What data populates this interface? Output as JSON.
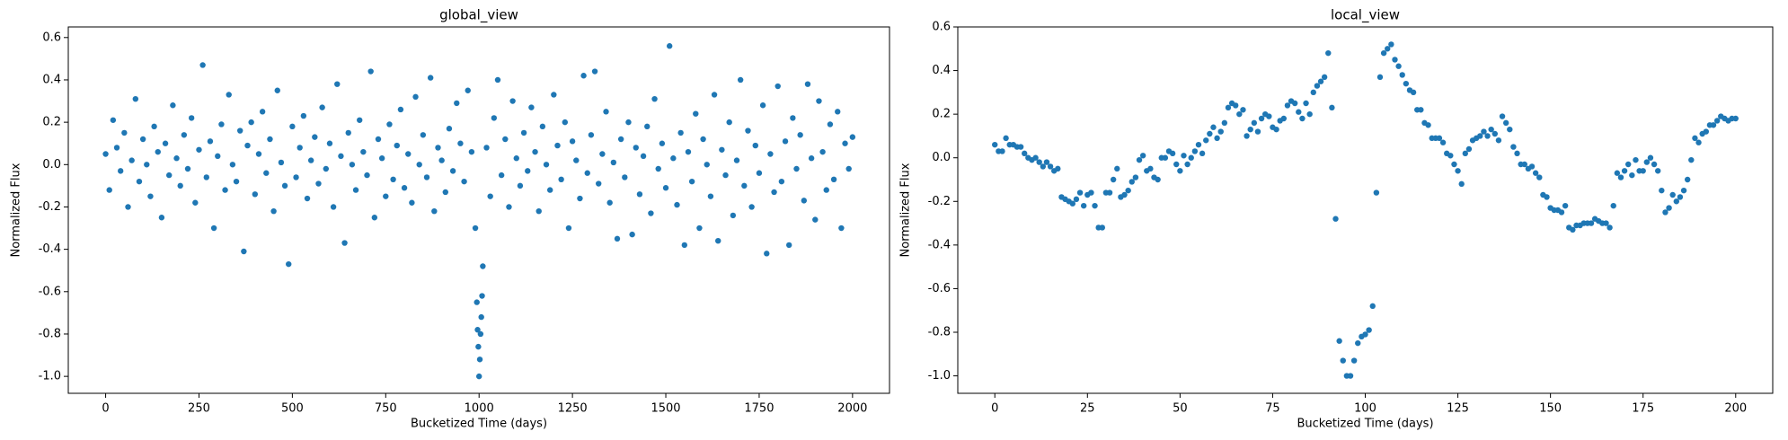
{
  "chart_data": [
    {
      "type": "scatter",
      "title": "global_view",
      "xlabel": "Bucketized Time (days)",
      "ylabel": "Normalized Flux",
      "color": "#1f77b4",
      "xlim": [
        -100,
        2099
      ],
      "ylim": [
        -1.08,
        0.65
      ],
      "xticks": [
        0,
        250,
        500,
        750,
        1000,
        1250,
        1500,
        1750,
        2000
      ],
      "yticks": [
        {
          "value": -1,
          "label": "-1.0"
        },
        -0.8,
        -0.6,
        -0.4,
        -0.2,
        {
          "value": 0,
          "label": "0.0"
        },
        0.2,
        0.4,
        0.6
      ],
      "x": [
        0,
        10,
        20,
        30,
        40,
        50,
        60,
        70,
        80,
        90,
        100,
        110,
        120,
        130,
        140,
        150,
        160,
        170,
        180,
        190,
        200,
        210,
        220,
        230,
        240,
        250,
        260,
        270,
        280,
        290,
        300,
        310,
        320,
        330,
        340,
        350,
        360,
        370,
        380,
        390,
        400,
        410,
        420,
        430,
        440,
        450,
        460,
        470,
        480,
        490,
        500,
        510,
        520,
        530,
        540,
        550,
        560,
        570,
        580,
        590,
        600,
        610,
        620,
        630,
        640,
        650,
        660,
        670,
        680,
        690,
        700,
        710,
        720,
        730,
        740,
        750,
        760,
        770,
        780,
        790,
        800,
        810,
        820,
        830,
        840,
        850,
        860,
        870,
        880,
        890,
        900,
        910,
        920,
        930,
        940,
        950,
        960,
        970,
        980,
        990,
        994,
        996,
        998,
        1000,
        1002,
        1004,
        1006,
        1008,
        1010,
        1020,
        1030,
        1040,
        1050,
        1060,
        1070,
        1080,
        1090,
        1100,
        1110,
        1120,
        1130,
        1140,
        1150,
        1160,
        1170,
        1180,
        1190,
        1200,
        1210,
        1220,
        1230,
        1240,
        1250,
        1260,
        1270,
        1280,
        1290,
        1300,
        1310,
        1320,
        1330,
        1340,
        1350,
        1360,
        1370,
        1380,
        1390,
        1400,
        1410,
        1420,
        1430,
        1440,
        1450,
        1460,
        1470,
        1480,
        1490,
        1500,
        1510,
        1520,
        1530,
        1540,
        1550,
        1560,
        1570,
        1580,
        1590,
        1600,
        1610,
        1620,
        1630,
        1640,
        1650,
        1660,
        1670,
        1680,
        1690,
        1700,
        1710,
        1720,
        1730,
        1740,
        1750,
        1760,
        1770,
        1780,
        1790,
        1800,
        1810,
        1820,
        1830,
        1840,
        1850,
        1860,
        1870,
        1880,
        1890,
        1900,
        1910,
        1920,
        1930,
        1940,
        1950,
        1960,
        1970,
        1980,
        1990,
        2000
      ],
      "values": [
        0.05,
        -0.12,
        0.21,
        0.08,
        -0.03,
        0.15,
        -0.2,
        0.02,
        0.31,
        -0.08,
        0.12,
        0.0,
        -0.15,
        0.18,
        0.06,
        -0.25,
        0.1,
        -0.05,
        0.28,
        0.03,
        -0.1,
        0.14,
        -0.02,
        0.22,
        -0.18,
        0.07,
        0.47,
        -0.06,
        0.11,
        -0.3,
        0.04,
        0.19,
        -0.12,
        0.33,
        0.0,
        -0.08,
        0.16,
        -0.41,
        0.09,
        0.2,
        -0.14,
        0.05,
        0.25,
        -0.04,
        0.12,
        -0.22,
        0.35,
        0.01,
        -0.1,
        -0.47,
        0.18,
        -0.06,
        0.08,
        0.23,
        -0.16,
        0.02,
        0.13,
        -0.09,
        0.27,
        -0.02,
        0.1,
        -0.2,
        0.38,
        0.04,
        -0.37,
        0.15,
        0.0,
        -0.12,
        0.21,
        0.06,
        -0.05,
        0.44,
        -0.25,
        0.12,
        0.03,
        -0.15,
        0.19,
        -0.07,
        0.09,
        0.26,
        -0.11,
        0.05,
        -0.18,
        0.32,
        0.0,
        0.14,
        -0.06,
        0.41,
        -0.22,
        0.08,
        0.02,
        -0.13,
        0.17,
        -0.03,
        0.29,
        0.1,
        -0.08,
        0.35,
        0.06,
        -0.3,
        -0.65,
        -0.78,
        -0.86,
        -1.0,
        -0.92,
        -0.8,
        -0.72,
        -0.62,
        -0.48,
        0.08,
        -0.15,
        0.22,
        0.4,
        -0.05,
        0.12,
        -0.2,
        0.3,
        0.03,
        -0.1,
        0.15,
        -0.03,
        0.27,
        0.06,
        -0.22,
        0.18,
        0.0,
        -0.12,
        0.33,
        0.09,
        -0.07,
        0.2,
        -0.3,
        0.11,
        0.02,
        -0.16,
        0.42,
        -0.04,
        0.14,
        0.44,
        -0.09,
        0.05,
        0.25,
        -0.18,
        0.01,
        -0.35,
        0.12,
        -0.06,
        0.2,
        -0.33,
        0.08,
        -0.14,
        0.04,
        0.18,
        -0.23,
        0.31,
        -0.02,
        0.1,
        -0.11,
        0.56,
        0.03,
        -0.19,
        0.15,
        -0.38,
        0.06,
        -0.08,
        0.24,
        -0.3,
        0.12,
        0.0,
        -0.15,
        0.33,
        -0.36,
        0.07,
        -0.05,
        0.2,
        -0.24,
        0.02,
        0.4,
        -0.1,
        0.16,
        -0.2,
        0.09,
        -0.04,
        0.28,
        -0.42,
        0.05,
        -0.13,
        0.37,
        -0.08,
        0.11,
        -0.38,
        0.22,
        -0.02,
        0.14,
        -0.17,
        0.38,
        0.03,
        -0.26,
        0.3,
        0.06,
        -0.12,
        0.19,
        -0.07,
        0.25,
        -0.3,
        0.1,
        -0.02,
        0.13
      ]
    },
    {
      "type": "scatter",
      "title": "local_view",
      "xlabel": "Bucketized Time (days)",
      "ylabel": "Normalized Flux",
      "color": "#1f77b4",
      "xlim": [
        -10,
        210
      ],
      "ylim": [
        -1.08,
        0.6
      ],
      "xticks": [
        0,
        25,
        50,
        75,
        100,
        125,
        150,
        175,
        200
      ],
      "yticks": [
        {
          "value": -1,
          "label": "-1.0"
        },
        -0.8,
        -0.6,
        -0.4,
        -0.2,
        {
          "value": 0,
          "label": "0.0"
        },
        0.2,
        0.4,
        0.6
      ],
      "x": [
        0,
        1,
        2,
        3,
        4,
        5,
        6,
        7,
        8,
        9,
        10,
        11,
        12,
        13,
        14,
        15,
        16,
        17,
        18,
        19,
        20,
        21,
        22,
        23,
        24,
        25,
        26,
        27,
        28,
        29,
        30,
        31,
        32,
        33,
        34,
        35,
        36,
        37,
        38,
        39,
        40,
        41,
        42,
        43,
        44,
        45,
        46,
        47,
        48,
        49,
        50,
        51,
        52,
        53,
        54,
        55,
        56,
        57,
        58,
        59,
        60,
        61,
        62,
        63,
        64,
        65,
        66,
        67,
        68,
        69,
        70,
        71,
        72,
        73,
        74,
        75,
        76,
        77,
        78,
        79,
        80,
        81,
        82,
        83,
        84,
        85,
        86,
        87,
        88,
        89,
        90,
        91,
        92,
        93,
        94,
        95,
        96,
        97,
        98,
        99,
        100,
        101,
        102,
        103,
        104,
        105,
        106,
        107,
        108,
        109,
        110,
        111,
        112,
        113,
        114,
        115,
        116,
        117,
        118,
        119,
        120,
        121,
        122,
        123,
        124,
        125,
        126,
        127,
        128,
        129,
        130,
        131,
        132,
        133,
        134,
        135,
        136,
        137,
        138,
        139,
        140,
        141,
        142,
        143,
        144,
        145,
        146,
        147,
        148,
        149,
        150,
        151,
        152,
        153,
        154,
        155,
        156,
        157,
        158,
        159,
        160,
        161,
        162,
        163,
        164,
        165,
        166,
        167,
        168,
        169,
        170,
        171,
        172,
        173,
        174,
        175,
        176,
        177,
        178,
        179,
        180,
        181,
        182,
        183,
        184,
        185,
        186,
        187,
        188,
        189,
        190,
        191,
        192,
        193,
        194,
        195,
        196,
        197,
        198,
        199,
        200
      ],
      "values": [
        0.06,
        0.03,
        0.03,
        0.09,
        0.06,
        0.06,
        0.05,
        0.05,
        0.02,
        0.0,
        -0.01,
        0.0,
        -0.02,
        -0.04,
        -0.02,
        -0.04,
        -0.06,
        -0.05,
        -0.18,
        -0.19,
        -0.2,
        -0.21,
        -0.19,
        -0.16,
        -0.22,
        -0.17,
        -0.16,
        -0.22,
        -0.32,
        -0.32,
        -0.16,
        -0.16,
        -0.1,
        -0.05,
        -0.18,
        -0.17,
        -0.15,
        -0.11,
        -0.09,
        -0.01,
        0.01,
        -0.06,
        -0.05,
        -0.09,
        -0.1,
        0.0,
        0.0,
        0.03,
        0.02,
        -0.03,
        -0.06,
        0.01,
        -0.03,
        0.0,
        0.03,
        0.06,
        0.02,
        0.08,
        0.11,
        0.14,
        0.09,
        0.12,
        0.16,
        0.23,
        0.25,
        0.24,
        0.2,
        0.22,
        0.1,
        0.13,
        0.16,
        0.12,
        0.18,
        0.2,
        0.19,
        0.14,
        0.13,
        0.17,
        0.18,
        0.24,
        0.26,
        0.25,
        0.21,
        0.18,
        0.25,
        0.2,
        0.3,
        0.33,
        0.35,
        0.37,
        0.48,
        0.23,
        -0.28,
        -0.84,
        -0.93,
        -1.0,
        -1.0,
        -0.93,
        -0.85,
        -0.82,
        -0.81,
        -0.79,
        -0.68,
        -0.16,
        0.37,
        0.48,
        0.5,
        0.52,
        0.45,
        0.42,
        0.38,
        0.34,
        0.31,
        0.3,
        0.22,
        0.22,
        0.16,
        0.15,
        0.09,
        0.09,
        0.09,
        0.07,
        0.02,
        0.01,
        -0.03,
        -0.06,
        -0.12,
        0.02,
        0.04,
        0.08,
        0.09,
        0.1,
        0.12,
        0.1,
        0.13,
        0.11,
        0.08,
        0.19,
        0.16,
        0.13,
        0.05,
        0.02,
        -0.03,
        -0.03,
        -0.05,
        -0.04,
        -0.07,
        -0.09,
        -0.17,
        -0.18,
        -0.23,
        -0.24,
        -0.24,
        -0.25,
        -0.22,
        -0.32,
        -0.33,
        -0.31,
        -0.31,
        -0.3,
        -0.3,
        -0.3,
        -0.28,
        -0.29,
        -0.3,
        -0.3,
        -0.32,
        -0.22,
        -0.07,
        -0.09,
        -0.06,
        -0.03,
        -0.08,
        -0.01,
        -0.06,
        -0.06,
        -0.02,
        0.0,
        -0.03,
        -0.06,
        -0.15,
        -0.25,
        -0.23,
        -0.17,
        -0.2,
        -0.18,
        -0.15,
        -0.1,
        -0.01,
        0.09,
        0.07,
        0.11,
        0.12,
        0.15,
        0.15,
        0.17,
        0.19,
        0.18,
        0.17,
        0.18,
        0.18
      ]
    }
  ]
}
